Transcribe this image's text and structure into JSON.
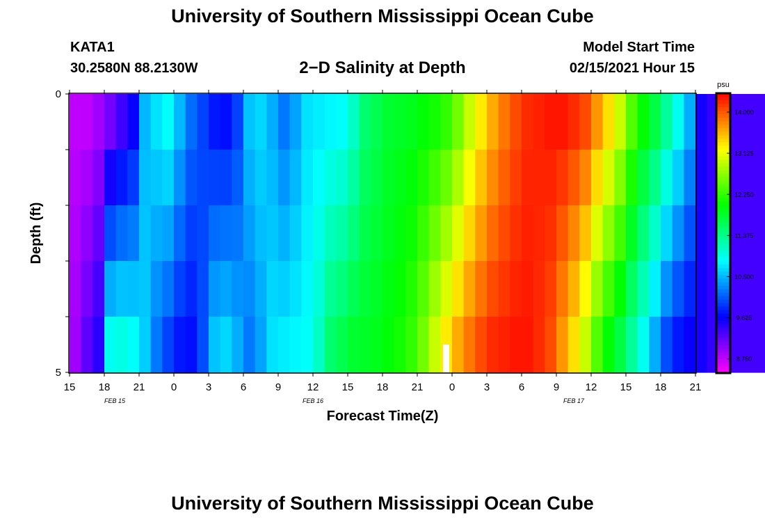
{
  "header": {
    "title": "University of Southern Mississippi Ocean Cube",
    "station": "KATA1",
    "coordinates": "30.2580N 88.2130W",
    "subtitle": "2−D Salinity at Depth",
    "model_start_label": "Model Start Time",
    "model_start_value": "02/15/2021 Hour 15"
  },
  "footer": {
    "title": "University of Southern Mississippi Ocean Cube"
  },
  "chart_data": {
    "type": "heatmap",
    "title": "2−D Salinity at Depth",
    "xlabel": "Forecast Time(Z)",
    "ylabel": "Depth (ft)",
    "x_ticks": [
      "15",
      "18",
      "21",
      "0",
      "3",
      "6",
      "9",
      "12",
      "15",
      "18",
      "21",
      "0",
      "3",
      "6",
      "9",
      "12",
      "15",
      "18",
      "21"
    ],
    "date_labels": [
      {
        "label": "FEB 15",
        "at_tick": 1.3
      },
      {
        "label": "FEB 16",
        "at_tick": 7
      },
      {
        "label": "FEB 17",
        "at_tick": 14.5
      }
    ],
    "y_ticks": [
      "0",
      "5"
    ],
    "ylim": [
      0,
      5
    ],
    "colorbar": {
      "unit": "psu",
      "ticks": [
        "14.000",
        "13.125",
        "12.250",
        "11.375",
        "10.500",
        "9.625",
        "8.750"
      ],
      "range": [
        8.45,
        14.4
      ]
    },
    "hours_from_start": [
      0,
      1,
      2,
      3,
      4,
      5,
      6,
      7,
      8,
      9,
      10,
      11,
      12,
      13,
      14,
      15,
      16,
      17,
      18,
      19,
      20,
      21,
      22,
      23,
      24,
      25,
      26,
      27,
      28,
      29,
      30,
      31,
      32,
      33,
      34,
      35,
      36,
      37,
      38,
      39,
      40,
      41,
      42,
      43,
      44,
      45,
      46,
      47,
      48,
      49,
      50,
      51,
      52,
      53
    ],
    "salinity_surface": [
      8.75,
      8.75,
      8.9,
      9.1,
      9.35,
      9.6,
      10.5,
      10.7,
      10.85,
      10.5,
      10.15,
      9.95,
      9.75,
      9.7,
      9.95,
      10.55,
      10.65,
      10.45,
      10.2,
      10.4,
      10.7,
      10.75,
      10.8,
      10.85,
      11.1,
      11.5,
      11.65,
      11.8,
      11.85,
      11.9,
      12.0,
      12.1,
      12.25,
      12.55,
      12.95,
      13.3,
      13.6,
      13.85,
      14.05,
      14.2,
      14.25,
      14.3,
      14.3,
      14.2,
      14.05,
      13.7,
      13.35,
      12.95,
      12.4,
      12.0,
      11.7,
      11.3,
      10.9,
      10.45
    ],
    "salinity_bottom": [
      8.9,
      9.2,
      9.45,
      10.9,
      10.95,
      10.85,
      10.6,
      10.2,
      9.95,
      9.75,
      9.7,
      10.0,
      10.55,
      10.65,
      10.45,
      10.2,
      10.4,
      10.7,
      10.75,
      10.8,
      10.85,
      11.1,
      11.5,
      11.65,
      11.8,
      11.85,
      11.9,
      12.0,
      12.1,
      12.25,
      12.55,
      12.95,
      13.3,
      13.6,
      13.85,
      14.05,
      14.2,
      14.25,
      14.3,
      14.3,
      14.2,
      14.05,
      13.7,
      13.35,
      12.95,
      12.4,
      12.0,
      11.7,
      11.3,
      10.9,
      10.45,
      10.0,
      9.75,
      9.6
    ],
    "salinity_tail": [
      9.55,
      9.4,
      9.35,
      9.32,
      9.32,
      9.32,
      9.32,
      9.32,
      9.32,
      9.32,
      9.32,
      9.32,
      9.32,
      9.32,
      9.32,
      9.32,
      9.32,
      9.3,
      9.25,
      9.2,
      9.2,
      9.25,
      9.45,
      9.75
    ]
  }
}
